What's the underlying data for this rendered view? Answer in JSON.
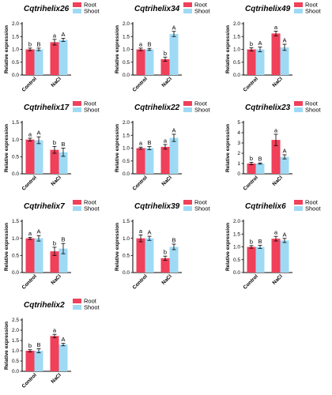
{
  "colors": {
    "root": "#f0405a",
    "shoot": "#9fdaf5",
    "axis": "#000000"
  },
  "chart_data": [
    {
      "type": "bar",
      "title": "Cqtrihelix26",
      "ylabel": "Relative expression",
      "categories": [
        "Control",
        "NaCl"
      ],
      "yticks": [
        "0.0",
        "0.5",
        "1.0",
        "1.5",
        "2.0"
      ],
      "ylim": [
        0,
        2.0
      ],
      "series": [
        {
          "name": "Root",
          "values": [
            1.0,
            1.28
          ],
          "errors": [
            0.05,
            0.11
          ],
          "labels": [
            "b",
            "a"
          ]
        },
        {
          "name": "Shoot",
          "values": [
            1.0,
            1.37
          ],
          "errors": [
            0.05,
            0.06
          ],
          "labels": [
            "B",
            "A"
          ]
        }
      ]
    },
    {
      "type": "bar",
      "title": "Cqtrihelix34",
      "ylabel": "Relative expression",
      "categories": [
        "Control",
        "NaCl"
      ],
      "yticks": [
        "0.0",
        "0.5",
        "1.0",
        "1.5",
        "2.0"
      ],
      "ylim": [
        0,
        2.0
      ],
      "series": [
        {
          "name": "Root",
          "values": [
            1.0,
            0.62
          ],
          "errors": [
            0.05,
            0.08
          ],
          "labels": [
            "a",
            "b"
          ]
        },
        {
          "name": "Shoot",
          "values": [
            1.0,
            1.6
          ],
          "errors": [
            0.04,
            0.1
          ],
          "labels": [
            "B",
            "A"
          ]
        }
      ]
    },
    {
      "type": "bar",
      "title": "Cqtrihelix49",
      "ylabel": "Relative expression",
      "categories": [
        "Control",
        "NaCl"
      ],
      "yticks": [
        "0.0",
        "0.5",
        "1.0",
        "1.5",
        "2.0"
      ],
      "ylim": [
        0,
        2.0
      ],
      "series": [
        {
          "name": "Root",
          "values": [
            1.0,
            1.62
          ],
          "errors": [
            0.06,
            0.09
          ],
          "labels": [
            "b",
            "a"
          ]
        },
        {
          "name": "Shoot",
          "values": [
            1.0,
            1.08
          ],
          "errors": [
            0.09,
            0.12
          ],
          "labels": [
            "A",
            "A"
          ]
        }
      ]
    },
    {
      "type": "bar",
      "title": "Cqtrihelix17",
      "ylabel": "Relative expression",
      "categories": [
        "Control",
        "NaCl"
      ],
      "yticks": [
        "0.0",
        "0.5",
        "1.0",
        "1.5"
      ],
      "ylim": [
        0,
        1.5
      ],
      "series": [
        {
          "name": "Root",
          "values": [
            1.0,
            0.7
          ],
          "errors": [
            0.04,
            0.1
          ],
          "labels": [
            "a",
            "b"
          ]
        },
        {
          "name": "Shoot",
          "values": [
            0.98,
            0.63
          ],
          "errors": [
            0.1,
            0.12
          ],
          "labels": [
            "A",
            "B"
          ]
        }
      ]
    },
    {
      "type": "bar",
      "title": "Cqtrihelix22",
      "ylabel": "Relative expression",
      "categories": [
        "Control",
        "NaCl"
      ],
      "yticks": [
        "0.0",
        "0.5",
        "1.0",
        "1.5",
        "2.0"
      ],
      "ylim": [
        0,
        2.0
      ],
      "series": [
        {
          "name": "Root",
          "values": [
            1.0,
            1.05
          ],
          "errors": [
            0.04,
            0.09
          ],
          "labels": [
            "a",
            "a"
          ]
        },
        {
          "name": "Shoot",
          "values": [
            1.0,
            1.4
          ],
          "errors": [
            0.06,
            0.14
          ],
          "labels": [
            "B",
            "A"
          ]
        }
      ]
    },
    {
      "type": "bar",
      "title": "Cqtrihelix23",
      "ylabel": "Relative expression",
      "categories": [
        "Control",
        "NaCl"
      ],
      "yticks": [
        "0",
        "1",
        "2",
        "3",
        "4",
        "5"
      ],
      "ylim": [
        0,
        5
      ],
      "series": [
        {
          "name": "Root",
          "values": [
            1.0,
            3.3
          ],
          "errors": [
            0.12,
            0.55
          ],
          "labels": [
            "b",
            "a"
          ]
        },
        {
          "name": "Shoot",
          "values": [
            1.0,
            1.65
          ],
          "errors": [
            0.06,
            0.2
          ],
          "labels": [
            "B",
            "A"
          ]
        }
      ]
    },
    {
      "type": "bar",
      "title": "Cqtrihelix7",
      "ylabel": "Relative expression",
      "categories": [
        "Control",
        "NaCl"
      ],
      "yticks": [
        "0.0",
        "0.5",
        "1.0",
        "1.5"
      ],
      "ylim": [
        0,
        1.5
      ],
      "series": [
        {
          "name": "Root",
          "values": [
            1.0,
            0.62
          ],
          "errors": [
            0.03,
            0.12
          ],
          "labels": [
            "a",
            "b"
          ]
        },
        {
          "name": "Shoot",
          "values": [
            1.0,
            0.7
          ],
          "errors": [
            0.08,
            0.15
          ],
          "labels": [
            "A",
            "B"
          ]
        }
      ]
    },
    {
      "type": "bar",
      "title": "Cqtrihelix39",
      "ylabel": "Relative expression",
      "categories": [
        "Control",
        "NaCl"
      ],
      "yticks": [
        "0.0",
        "0.5",
        "1.0",
        "1.5"
      ],
      "ylim": [
        0,
        1.5
      ],
      "series": [
        {
          "name": "Root",
          "values": [
            1.0,
            0.42
          ],
          "errors": [
            0.1,
            0.06
          ],
          "labels": [
            "a",
            "b"
          ]
        },
        {
          "name": "Shoot",
          "values": [
            1.0,
            0.75
          ],
          "errors": [
            0.06,
            0.08
          ],
          "labels": [
            "A",
            "B"
          ]
        }
      ]
    },
    {
      "type": "bar",
      "title": "Cqtrihelix6",
      "ylabel": "Relative expression",
      "categories": [
        "Control",
        "NaCl"
      ],
      "yticks": [
        "0.0",
        "0.5",
        "1.0",
        "1.5",
        "2.0"
      ],
      "ylim": [
        0,
        2.0
      ],
      "series": [
        {
          "name": "Root",
          "values": [
            1.0,
            1.32
          ],
          "errors": [
            0.05,
            0.09
          ],
          "labels": [
            "b",
            "a"
          ]
        },
        {
          "name": "Shoot",
          "values": [
            1.0,
            1.25
          ],
          "errors": [
            0.06,
            0.08
          ],
          "labels": [
            "B",
            "A"
          ]
        }
      ]
    },
    {
      "type": "bar",
      "title": "Cqtrihelix2",
      "ylabel": "Relative expression",
      "categories": [
        "Control",
        "NaCl"
      ],
      "yticks": [
        "0.0",
        "0.5",
        "1.0",
        "1.5",
        "2.0",
        "2.5"
      ],
      "ylim": [
        0,
        2.5
      ],
      "series": [
        {
          "name": "Root",
          "values": [
            1.0,
            1.72
          ],
          "errors": [
            0.05,
            0.08
          ],
          "labels": [
            "b",
            "a"
          ]
        },
        {
          "name": "Shoot",
          "values": [
            1.0,
            1.3
          ],
          "errors": [
            0.1,
            0.06
          ],
          "labels": [
            "B",
            "A"
          ]
        }
      ]
    }
  ]
}
